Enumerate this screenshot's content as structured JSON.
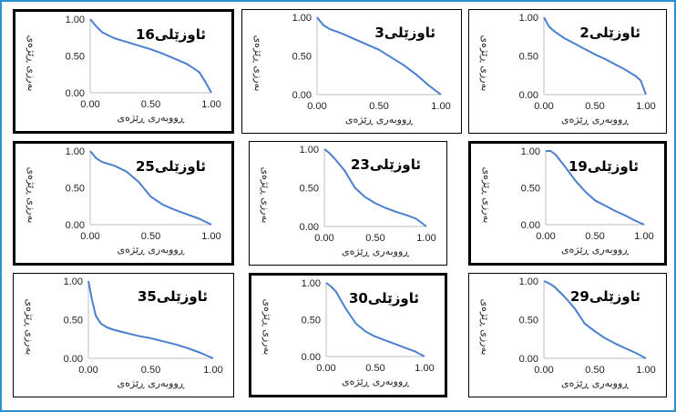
{
  "colors": {
    "frame": "#2e8fd0",
    "curve": "#4a7fd0",
    "axis": "#bfbfbf"
  },
  "chart_data": [
    {
      "type": "line",
      "title": "ئاوزێلی16",
      "xlabel": "ڕووبەری ڕێژەی",
      "ylabel": "بەرزی ڕێژەی",
      "xticks": [
        "0.00",
        "0.50",
        "1.00"
      ],
      "yticks": [
        "0.00",
        "0.50",
        "1.00"
      ],
      "xlim": [
        0,
        1
      ],
      "ylim": [
        0,
        1
      ],
      "grid": false,
      "border": "thick",
      "series": [
        {
          "x": [
            0,
            0.05,
            0.1,
            0.2,
            0.3,
            0.4,
            0.5,
            0.6,
            0.7,
            0.8,
            0.9,
            0.95,
            1.0
          ],
          "y": [
            1.0,
            0.9,
            0.82,
            0.74,
            0.69,
            0.64,
            0.59,
            0.53,
            0.46,
            0.39,
            0.28,
            0.15,
            0.0
          ]
        }
      ]
    },
    {
      "type": "line",
      "title": "ئاوزێلی3",
      "xlabel": "ڕووبەری ڕێژەی",
      "ylabel": "بەرزی ڕێژەی",
      "xticks": [
        "0.00",
        "0.50",
        "1.00"
      ],
      "yticks": [
        "0.00",
        "0.50",
        "1.00"
      ],
      "xlim": [
        0,
        1
      ],
      "ylim": [
        0,
        1
      ],
      "grid": false,
      "border": "thin",
      "series": [
        {
          "x": [
            0,
            0.05,
            0.1,
            0.2,
            0.3,
            0.4,
            0.5,
            0.6,
            0.7,
            0.8,
            0.9,
            1.0
          ],
          "y": [
            1.0,
            0.9,
            0.85,
            0.79,
            0.72,
            0.65,
            0.58,
            0.48,
            0.38,
            0.26,
            0.12,
            0.0
          ]
        }
      ]
    },
    {
      "type": "line",
      "title": "ئاوزێلی2",
      "xlabel": "ڕووبەری ڕێژەی",
      "ylabel": "بەرزی ڕێژەی",
      "xticks": [
        "0.00",
        "0.50",
        "1.00"
      ],
      "yticks": [
        "0.00",
        "0.50",
        "1.00"
      ],
      "xlim": [
        0,
        1
      ],
      "ylim": [
        0,
        1
      ],
      "grid": false,
      "border": "thin",
      "series": [
        {
          "x": [
            0,
            0.05,
            0.1,
            0.2,
            0.3,
            0.4,
            0.5,
            0.6,
            0.7,
            0.8,
            0.9,
            0.95,
            1.0
          ],
          "y": [
            1.0,
            0.88,
            0.82,
            0.73,
            0.66,
            0.59,
            0.52,
            0.46,
            0.39,
            0.32,
            0.24,
            0.18,
            0.0
          ]
        }
      ]
    },
    {
      "type": "line",
      "title": "ئاوزێلی25",
      "xlabel": "ڕووبەری ڕێژەی",
      "ylabel": "بەرزی ڕێژەی",
      "xticks": [
        "0.00",
        "0.50",
        "1.00"
      ],
      "yticks": [
        "0.00",
        "0.50",
        "1.00"
      ],
      "xlim": [
        0,
        1
      ],
      "ylim": [
        0,
        1
      ],
      "grid": false,
      "border": "thick",
      "series": [
        {
          "x": [
            0,
            0.05,
            0.1,
            0.2,
            0.3,
            0.4,
            0.5,
            0.6,
            0.7,
            0.8,
            0.9,
            1.0
          ],
          "y": [
            1.0,
            0.9,
            0.85,
            0.8,
            0.72,
            0.58,
            0.38,
            0.27,
            0.2,
            0.14,
            0.08,
            0.0
          ]
        }
      ]
    },
    {
      "type": "line",
      "title": "ئاوزێلی23",
      "xlabel": "ڕووبەری ڕێژەی",
      "ylabel": "بەرزی ڕێژەی",
      "xticks": [
        "0.00",
        "0.50",
        "1.00"
      ],
      "yticks": [
        "0.00",
        "0.50",
        "1.00"
      ],
      "xlim": [
        0,
        1
      ],
      "ylim": [
        0,
        1
      ],
      "grid": false,
      "border": "thin",
      "series": [
        {
          "x": [
            0,
            0.05,
            0.1,
            0.2,
            0.3,
            0.4,
            0.5,
            0.6,
            0.7,
            0.8,
            0.9,
            1.0
          ],
          "y": [
            1.0,
            0.95,
            0.88,
            0.72,
            0.5,
            0.38,
            0.3,
            0.24,
            0.19,
            0.15,
            0.1,
            0.0
          ]
        }
      ]
    },
    {
      "type": "line",
      "title": "ئاوزێلی19",
      "xlabel": "ڕووبەری ڕێژەی",
      "ylabel": "بەرزی ڕێژەی",
      "xticks": [
        "0.00",
        "0.50",
        "1.00"
      ],
      "yticks": [
        "0.00",
        "0.50",
        "1.00"
      ],
      "xlim": [
        0,
        1
      ],
      "ylim": [
        0,
        1
      ],
      "grid": false,
      "border": "thick",
      "series": [
        {
          "x": [
            0,
            0.05,
            0.1,
            0.2,
            0.3,
            0.4,
            0.5,
            0.6,
            0.7,
            0.8,
            0.9,
            1.0
          ],
          "y": [
            1.0,
            1.0,
            0.95,
            0.78,
            0.6,
            0.45,
            0.33,
            0.26,
            0.19,
            0.13,
            0.06,
            0.0
          ]
        }
      ]
    },
    {
      "type": "line",
      "title": "ئاوزێلی35",
      "xlabel": "ڕووبەری ڕێژەی",
      "ylabel": "بەرزی ڕێژەی",
      "xticks": [
        "0.00",
        "0.50",
        "1.00"
      ],
      "yticks": [
        "0.00",
        "0.50",
        "1.00"
      ],
      "xlim": [
        0,
        1
      ],
      "ylim": [
        0,
        1
      ],
      "grid": false,
      "border": "thin",
      "series": [
        {
          "x": [
            0,
            0.03,
            0.06,
            0.1,
            0.15,
            0.2,
            0.3,
            0.4,
            0.5,
            0.6,
            0.7,
            0.8,
            0.9,
            1.0
          ],
          "y": [
            1.0,
            0.75,
            0.55,
            0.45,
            0.4,
            0.37,
            0.33,
            0.29,
            0.26,
            0.22,
            0.18,
            0.13,
            0.07,
            0.0
          ]
        }
      ]
    },
    {
      "type": "line",
      "title": "ئاوزێلی30",
      "xlabel": "ڕووبەری ڕێژەی",
      "ylabel": "بەرزی ڕێژەی",
      "xticks": [
        "0.00",
        "0.50",
        "1.00"
      ],
      "yticks": [
        "0.00",
        "0.50",
        "1.00"
      ],
      "xlim": [
        0,
        1
      ],
      "ylim": [
        0,
        1
      ],
      "grid": false,
      "border": "thick",
      "series": [
        {
          "x": [
            0,
            0.05,
            0.1,
            0.2,
            0.3,
            0.4,
            0.5,
            0.6,
            0.7,
            0.8,
            0.9,
            1.0
          ],
          "y": [
            1.0,
            0.95,
            0.88,
            0.65,
            0.45,
            0.34,
            0.27,
            0.22,
            0.17,
            0.12,
            0.07,
            0.0
          ]
        }
      ]
    },
    {
      "type": "line",
      "title": "ئاوزێلی29",
      "xlabel": "ڕووبەری ڕێژەی",
      "ylabel": "بەرزی ڕێژەی",
      "xticks": [
        "0.00",
        "0.50",
        "1.00"
      ],
      "yticks": [
        "0.00",
        "0.50",
        "1.00"
      ],
      "xlim": [
        0,
        1
      ],
      "ylim": [
        0,
        1
      ],
      "grid": false,
      "border": "thin",
      "series": [
        {
          "x": [
            0,
            0.05,
            0.1,
            0.2,
            0.3,
            0.4,
            0.5,
            0.6,
            0.7,
            0.8,
            0.9,
            1.0
          ],
          "y": [
            1.0,
            0.97,
            0.93,
            0.8,
            0.65,
            0.45,
            0.35,
            0.26,
            0.19,
            0.13,
            0.07,
            0.0
          ]
        }
      ]
    }
  ]
}
